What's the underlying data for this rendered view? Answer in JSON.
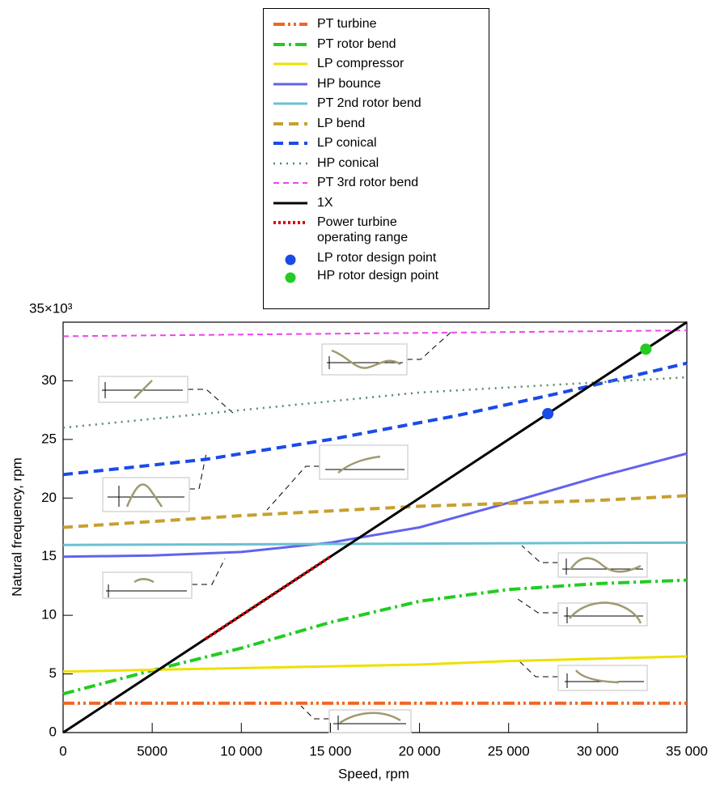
{
  "chart_data": {
    "type": "line",
    "x_label": "Speed, rpm",
    "y_label": "Natural frequency, rpm",
    "xlim": [
      0,
      35000
    ],
    "ylim": [
      0,
      35
    ],
    "xticks": [
      0,
      5000,
      {
        "value": 10000,
        "label": "10 000"
      },
      {
        "value": 15000,
        "label": "15 000"
      },
      {
        "value": 20000,
        "label": "20 000"
      },
      {
        "value": 25000,
        "label": "25 000"
      },
      {
        "value": 30000,
        "label": "30 000"
      },
      {
        "value": 35000,
        "label": "35 000"
      }
    ],
    "yticks": [
      0,
      5,
      10,
      15,
      20,
      25,
      30,
      {
        "value": 35,
        "label": "35×10³"
      }
    ],
    "series": [
      {
        "name": "PT turbine",
        "color": "#f26522",
        "dash": "dash-dot-dot",
        "x": [
          0,
          35000
        ],
        "values": [
          2.5,
          2.5
        ]
      },
      {
        "name": "PT rotor bend",
        "color": "#22cc22",
        "dash": "dash-dot",
        "x": [
          0,
          5000,
          10000,
          15000,
          20000,
          25000,
          30000,
          35000
        ],
        "values": [
          3.3,
          5.3,
          7.2,
          9.4,
          11.2,
          12.2,
          12.7,
          13
        ]
      },
      {
        "name": "LP compressor",
        "color": "#eee000",
        "dash": "solid",
        "x": [
          0,
          10000,
          20000,
          25000,
          35000
        ],
        "values": [
          5.2,
          5.5,
          5.8,
          6.1,
          6.5
        ]
      },
      {
        "name": "HP bounce",
        "color": "#6262ee",
        "dash": "solid",
        "x": [
          0,
          5000,
          10000,
          15000,
          20000,
          25000,
          30000,
          35000
        ],
        "values": [
          15,
          15.1,
          15.4,
          16.2,
          17.5,
          19.6,
          21.8,
          23.8
        ]
      },
      {
        "name": "PT 2nd rotor bend",
        "color": "#6cc0d0",
        "dash": "solid",
        "x": [
          0,
          35000
        ],
        "values": [
          16,
          16.2
        ]
      },
      {
        "name": "LP bend",
        "color": "#c8a030",
        "dash": "dash",
        "x": [
          0,
          10000,
          20000,
          30000,
          35000
        ],
        "values": [
          17.5,
          18.5,
          19.3,
          19.8,
          20.2
        ]
      },
      {
        "name": "LP conical",
        "color": "#1a4ae8",
        "dash": "dash",
        "x": [
          0,
          8000,
          15000,
          22000,
          28000,
          35000
        ],
        "values": [
          22,
          23.3,
          25,
          27,
          29,
          31.5
        ]
      },
      {
        "name": "HP conical",
        "color": "#4f8a6a",
        "dash": "dot",
        "x": [
          0,
          10000,
          20000,
          35000
        ],
        "values": [
          26,
          27.5,
          29,
          30.3
        ]
      },
      {
        "name": "PT 3rd rotor bend",
        "color": "#ee44ee",
        "dash": "fine-dash",
        "x": [
          0,
          35000
        ],
        "values": [
          33.8,
          34.3
        ]
      },
      {
        "name": "1X",
        "color": "#000000",
        "dash": "solid",
        "x": [
          0,
          35000
        ],
        "values": [
          0,
          35
        ]
      },
      {
        "name": "Power turbine operating range",
        "color": "#dd0000",
        "dash": "dense-dot",
        "x": [
          8000,
          15000
        ],
        "values": [
          8,
          15
        ]
      },
      {
        "name": "LP rotor design point",
        "color": "#1a4ae8",
        "marker": "dot",
        "x": [
          27200
        ],
        "values": [
          27.2
        ]
      },
      {
        "name": "HP rotor design point",
        "color": "#22cc22",
        "marker": "dot",
        "x": [
          32700
        ],
        "values": [
          32.7
        ]
      }
    ]
  }
}
